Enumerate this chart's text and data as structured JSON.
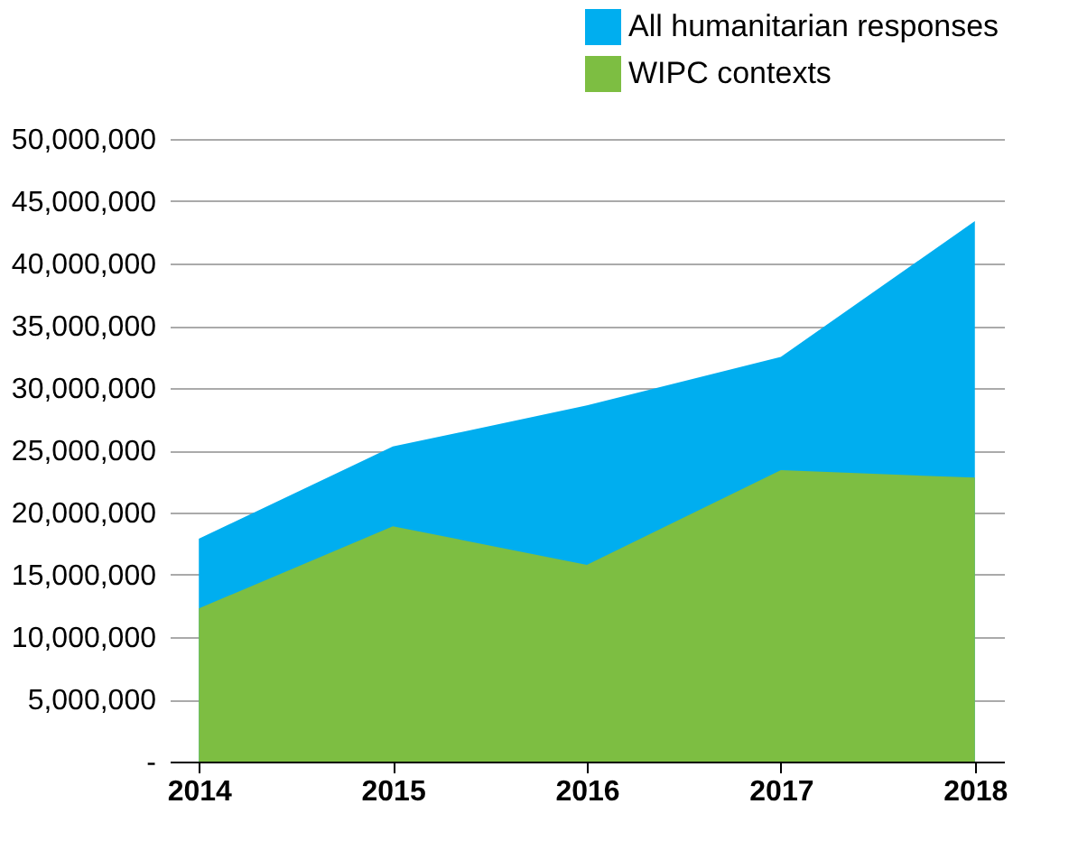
{
  "chart_data": {
    "type": "area",
    "categories": [
      "2014",
      "2015",
      "2016",
      "2017",
      "2018"
    ],
    "series": [
      {
        "name": "All humanitarian responses",
        "color": "#00aeef",
        "values": [
          17900000,
          25300000,
          28600000,
          32500000,
          43400000
        ]
      },
      {
        "name": "WIPC contexts",
        "color": "#7dbe42",
        "values": [
          12300000,
          18900000,
          15800000,
          23400000,
          22800000
        ]
      }
    ],
    "ylim": [
      0,
      50000000
    ],
    "yticks": [
      {
        "value": 0,
        "label": "-"
      },
      {
        "value": 5000000,
        "label": "5,000,000"
      },
      {
        "value": 10000000,
        "label": "10,000,000"
      },
      {
        "value": 15000000,
        "label": "15,000,000"
      },
      {
        "value": 20000000,
        "label": "20,000,000"
      },
      {
        "value": 25000000,
        "label": "25,000,000"
      },
      {
        "value": 30000000,
        "label": "30,000,000"
      },
      {
        "value": 35000000,
        "label": "35,000,000"
      },
      {
        "value": 40000000,
        "label": "40,000,000"
      },
      {
        "value": 45000000,
        "label": "45,000,000"
      },
      {
        "value": 50000000,
        "label": "50,000,000"
      }
    ],
    "grid": "y",
    "legend": "top right"
  }
}
